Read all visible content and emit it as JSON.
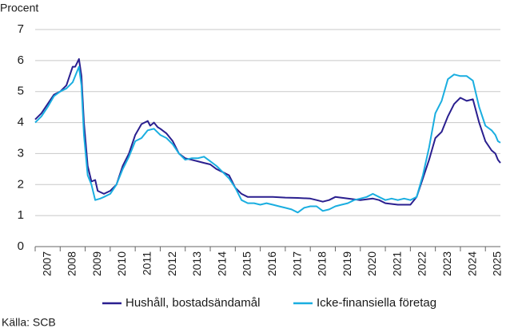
{
  "chart_data": {
    "type": "line",
    "y_label": "Procent",
    "source": "Källa: SCB",
    "xlim": [
      2007,
      2025.6
    ],
    "xticks": [
      2007,
      2008,
      2009,
      2010,
      2011,
      2012,
      2013,
      2014,
      2015,
      2016,
      2017,
      2018,
      2019,
      2020,
      2021,
      2022,
      2023,
      2024,
      2025
    ],
    "ylim": [
      0,
      7
    ],
    "yticks": [
      0,
      1,
      2,
      3,
      4,
      5,
      6,
      7
    ],
    "grid": true,
    "legend": "bottom",
    "series": [
      {
        "name": "Hushåll, bostadsändamål",
        "color": "#2a1f8f",
        "x": [
          2007.0,
          2007.25,
          2007.5,
          2007.75,
          2008.0,
          2008.25,
          2008.5,
          2008.6,
          2008.75,
          2008.85,
          2008.95,
          2009.1,
          2009.25,
          2009.4,
          2009.5,
          2009.75,
          2010.0,
          2010.25,
          2010.5,
          2010.75,
          2011.0,
          2011.25,
          2011.5,
          2011.6,
          2011.75,
          2011.9,
          2012.0,
          2012.25,
          2012.5,
          2012.75,
          2013.0,
          2013.25,
          2013.5,
          2013.75,
          2014.0,
          2014.25,
          2014.5,
          2014.75,
          2015.0,
          2015.25,
          2015.5,
          2016.0,
          2016.5,
          2017.0,
          2017.5,
          2018.0,
          2018.25,
          2018.5,
          2018.75,
          2019.0,
          2019.5,
          2020.0,
          2020.5,
          2020.75,
          2021.0,
          2021.5,
          2022.0,
          2022.25,
          2022.5,
          2022.75,
          2023.0,
          2023.25,
          2023.5,
          2023.75,
          2024.0,
          2024.25,
          2024.5,
          2024.75,
          2025.0,
          2025.25,
          2025.4,
          2025.5,
          2025.6
        ],
        "values": [
          4.1,
          4.3,
          4.6,
          4.9,
          5.0,
          5.2,
          5.8,
          5.8,
          6.05,
          5.5,
          4.0,
          2.6,
          2.1,
          2.15,
          1.8,
          1.7,
          1.8,
          2.0,
          2.6,
          3.0,
          3.6,
          3.95,
          4.05,
          3.9,
          4.0,
          3.85,
          3.8,
          3.65,
          3.4,
          3.0,
          2.85,
          2.8,
          2.75,
          2.7,
          2.65,
          2.5,
          2.4,
          2.3,
          1.9,
          1.7,
          1.6,
          1.6,
          1.6,
          1.58,
          1.57,
          1.55,
          1.5,
          1.45,
          1.5,
          1.6,
          1.55,
          1.5,
          1.55,
          1.5,
          1.4,
          1.35,
          1.35,
          1.6,
          2.2,
          2.8,
          3.5,
          3.7,
          4.2,
          4.6,
          4.8,
          4.7,
          4.75,
          4.0,
          3.4,
          3.1,
          3.0,
          2.8,
          2.7
        ]
      },
      {
        "name": "Icke-finansiella företag",
        "color": "#1aaee0",
        "x": [
          2007.0,
          2007.25,
          2007.5,
          2007.75,
          2008.0,
          2008.25,
          2008.5,
          2008.75,
          2008.85,
          2008.95,
          2009.1,
          2009.25,
          2009.4,
          2009.6,
          2009.75,
          2010.0,
          2010.25,
          2010.5,
          2010.75,
          2011.0,
          2011.25,
          2011.5,
          2011.75,
          2012.0,
          2012.25,
          2012.5,
          2012.75,
          2013.0,
          2013.25,
          2013.5,
          2013.75,
          2014.0,
          2014.25,
          2014.5,
          2014.75,
          2015.0,
          2015.25,
          2015.5,
          2015.75,
          2016.0,
          2016.25,
          2016.5,
          2016.75,
          2017.0,
          2017.25,
          2017.5,
          2017.75,
          2018.0,
          2018.25,
          2018.5,
          2018.75,
          2019.0,
          2019.25,
          2019.5,
          2019.75,
          2020.0,
          2020.25,
          2020.5,
          2020.75,
          2021.0,
          2021.25,
          2021.5,
          2021.75,
          2022.0,
          2022.25,
          2022.5,
          2022.75,
          2023.0,
          2023.25,
          2023.5,
          2023.75,
          2024.0,
          2024.25,
          2024.5,
          2024.75,
          2025.0,
          2025.25,
          2025.4,
          2025.5,
          2025.6
        ],
        "values": [
          4.0,
          4.2,
          4.5,
          4.85,
          5.0,
          5.1,
          5.3,
          5.8,
          5.2,
          3.6,
          2.3,
          2.0,
          1.5,
          1.55,
          1.6,
          1.7,
          2.0,
          2.5,
          2.9,
          3.4,
          3.5,
          3.75,
          3.8,
          3.6,
          3.5,
          3.3,
          3.0,
          2.8,
          2.85,
          2.85,
          2.9,
          2.75,
          2.6,
          2.4,
          2.2,
          1.9,
          1.5,
          1.4,
          1.4,
          1.35,
          1.4,
          1.35,
          1.3,
          1.25,
          1.2,
          1.1,
          1.25,
          1.3,
          1.3,
          1.15,
          1.2,
          1.3,
          1.35,
          1.4,
          1.5,
          1.55,
          1.6,
          1.7,
          1.6,
          1.5,
          1.55,
          1.5,
          1.55,
          1.5,
          1.6,
          2.3,
          3.2,
          4.3,
          4.7,
          5.4,
          5.55,
          5.5,
          5.5,
          5.35,
          4.5,
          3.9,
          3.75,
          3.6,
          3.4,
          3.35
        ]
      }
    ]
  }
}
